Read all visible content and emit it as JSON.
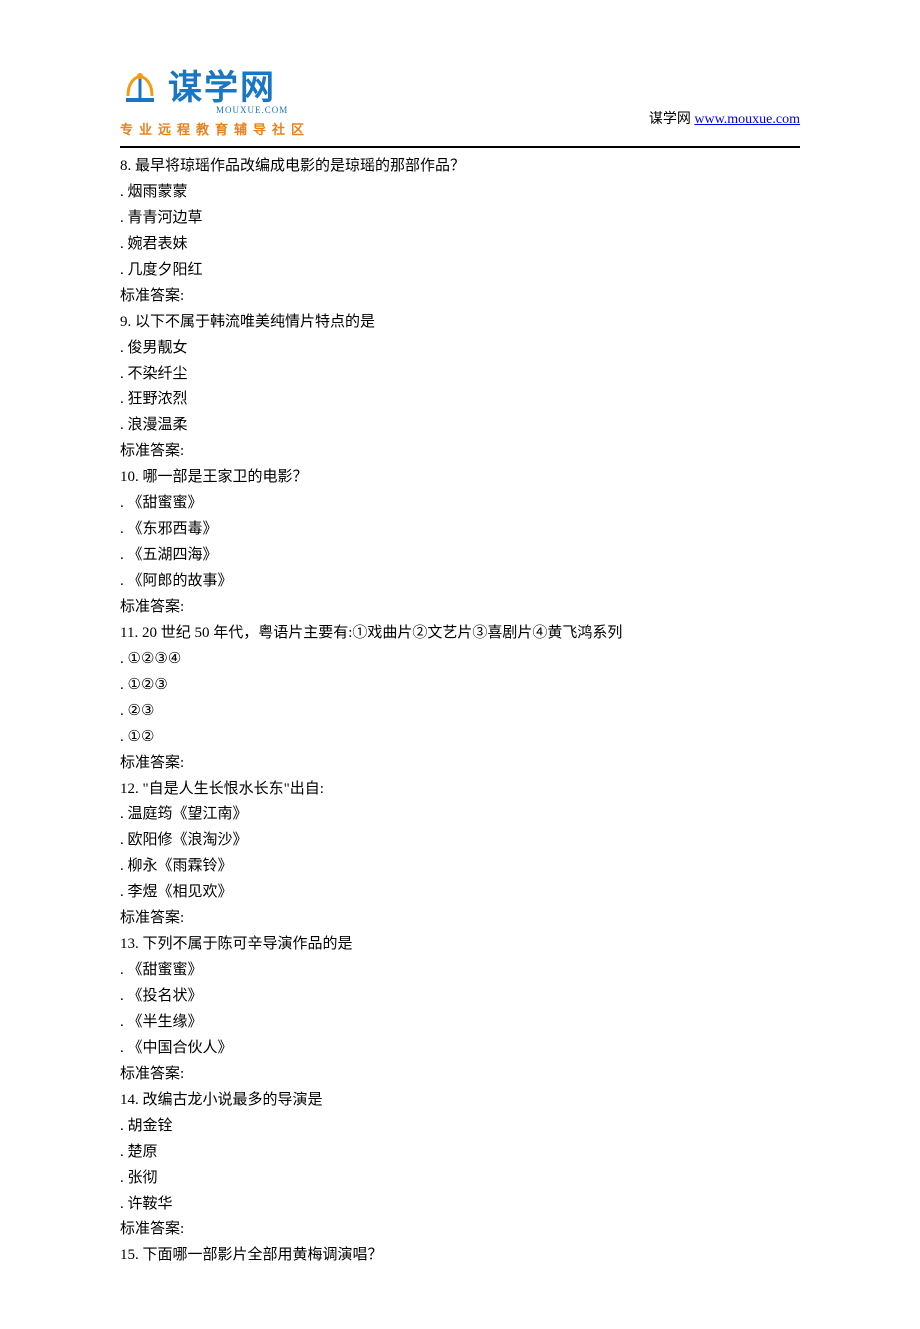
{
  "header": {
    "logo_main": "谋学网",
    "logo_sub": "MOUXUE.COM",
    "logo_tagline": "专业远程教育辅导社区",
    "right_text": "谋学网 ",
    "right_link": "www.mouxue.com"
  },
  "questions": [
    {
      "num": "8.",
      "text": "最早将琼瑶作品改编成电影的是琼瑶的那部作品？",
      "options": [
        "烟雨蒙蒙",
        "青青河边草",
        "婉君表妹",
        "几度夕阳红"
      ],
      "answer": "标准答案:"
    },
    {
      "num": "9.",
      "text": "以下不属于韩流唯美纯情片特点的是",
      "options": [
        "俊男靓女",
        "不染纤尘",
        "狂野浓烈",
        "浪漫温柔"
      ],
      "answer": "标准答案:"
    },
    {
      "num": "10.",
      "text": "哪一部是王家卫的电影？",
      "options": [
        "《甜蜜蜜》",
        "《东邪西毒》",
        "《五湖四海》",
        "《阿郎的故事》"
      ],
      "answer": "标准答案:"
    },
    {
      "num": "11.",
      "text": "20 世纪 50 年代，粤语片主要有:①戏曲片②文艺片③喜剧片④黄飞鸿系列",
      "options": [
        "①②③④",
        "①②③",
        "②③",
        "①②"
      ],
      "answer": "标准答案:"
    },
    {
      "num": "12.",
      "text": "\"自是人生长恨水长东\"出自:",
      "options": [
        "温庭筠《望江南》",
        "欧阳修《浪淘沙》",
        "柳永《雨霖铃》",
        "李煜《相见欢》"
      ],
      "answer": "标准答案:"
    },
    {
      "num": "13.",
      "text": "下列不属于陈可辛导演作品的是",
      "options": [
        "《甜蜜蜜》",
        "《投名状》",
        "《半生缘》",
        "《中国合伙人》"
      ],
      "answer": "标准答案:"
    },
    {
      "num": "14.",
      "text": "改编古龙小说最多的导演是",
      "options": [
        "胡金铨",
        "楚原",
        "张彻",
        "许鞍华"
      ],
      "answer": "标准答案:"
    },
    {
      "num": "15.",
      "text": "下面哪一部影片全部用黄梅调演唱？",
      "options": [],
      "answer": null
    }
  ]
}
